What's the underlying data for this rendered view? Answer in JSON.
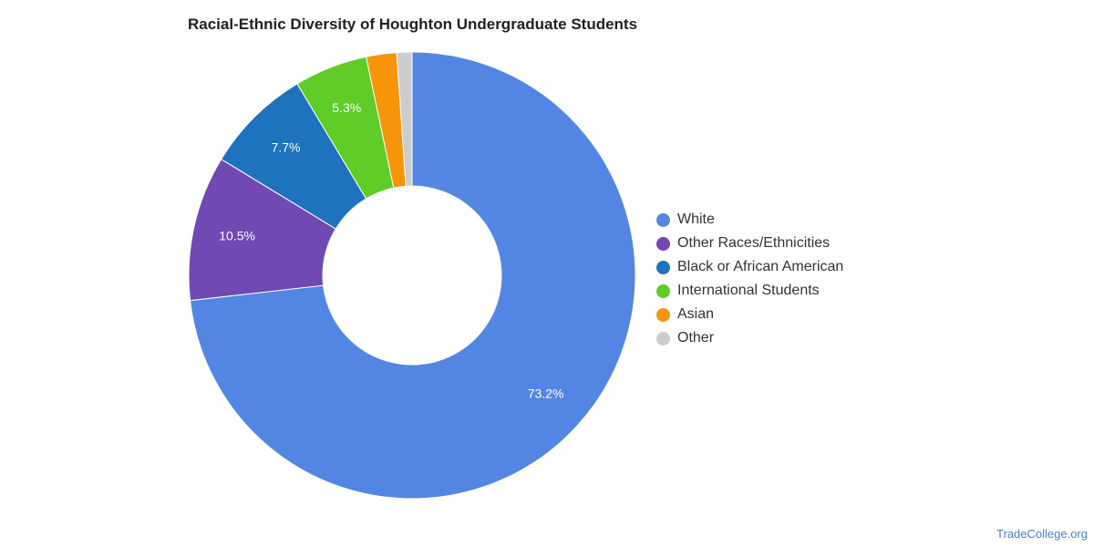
{
  "chart_data": {
    "type": "pie",
    "title": "Racial-Ethnic Diversity of Houghton Undergraduate Students",
    "donut": true,
    "legend_position": "right",
    "slices": [
      {
        "label": "White",
        "value": 73.2,
        "display": "73.2%",
        "color": "#5286e2"
      },
      {
        "label": "Other Races/Ethnicities",
        "value": 10.5,
        "display": "10.5%",
        "color": "#7149b2"
      },
      {
        "label": "Black or African American",
        "value": 7.7,
        "display": "7.7%",
        "color": "#1f72bd"
      },
      {
        "label": "International Students",
        "value": 5.3,
        "display": "5.3%",
        "color": "#5fcc27"
      },
      {
        "label": "Asian",
        "value": 2.2,
        "display": "",
        "color": "#f6950a"
      },
      {
        "label": "Other",
        "value": 1.1,
        "display": "",
        "color": "#cccccc"
      }
    ]
  },
  "footer": {
    "watermark": "TradeCollege.org"
  }
}
